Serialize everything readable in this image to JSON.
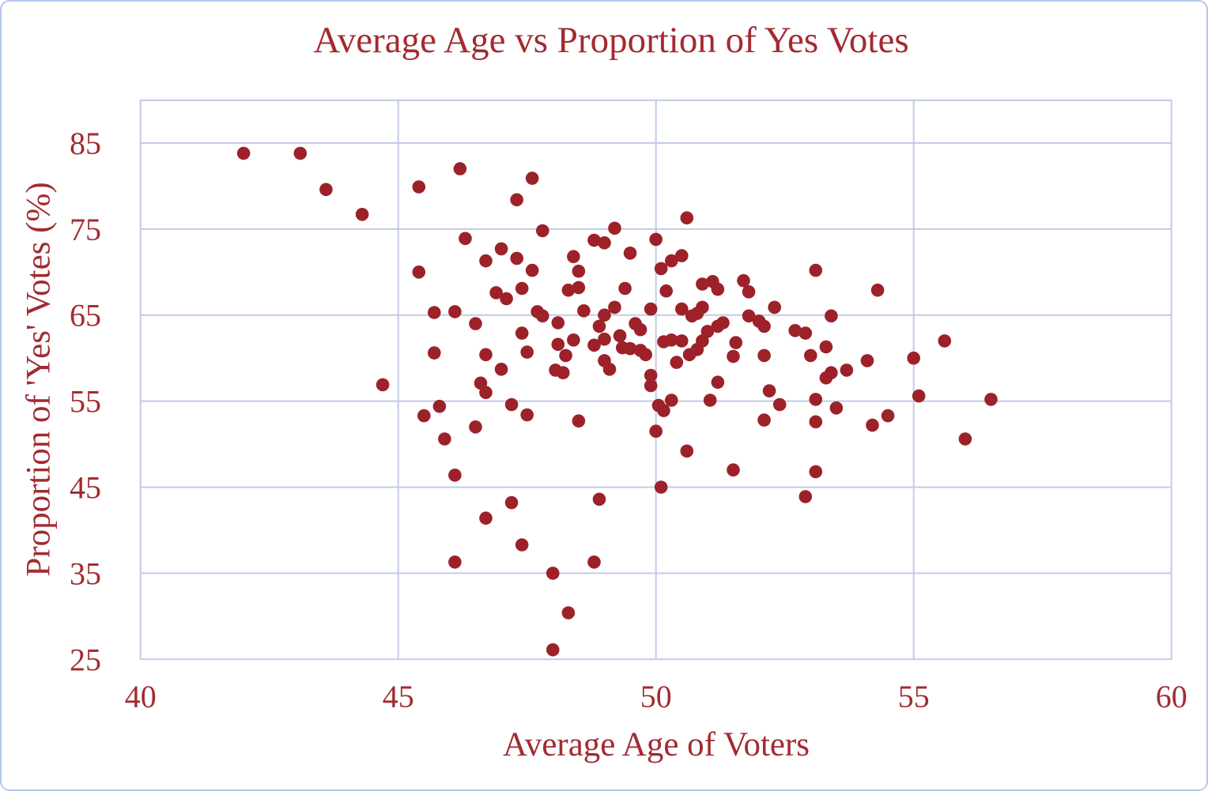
{
  "page": {
    "background": "#ffffff",
    "frame_border_color": "#b7c6ea"
  },
  "chart_data": {
    "type": "scatter",
    "title": "Average Age vs Proportion of Yes Votes",
    "xlabel": "Average Age of Voters",
    "ylabel": "Proportion of 'Yes' Votes (%)",
    "xlim": [
      40,
      60
    ],
    "ylim": [
      25,
      85
    ],
    "x_ticks": [
      40,
      45,
      50,
      55,
      60
    ],
    "y_ticks": [
      25,
      35,
      45,
      55,
      65,
      75,
      85
    ],
    "grid": true,
    "legend_position": "none",
    "colors": {
      "point": "#9d2129",
      "text": "#a22b31",
      "grid": "#c3cbe6"
    },
    "points": [
      [
        42.0,
        83.8
      ],
      [
        43.1,
        83.8
      ],
      [
        43.6,
        79.6
      ],
      [
        44.3,
        76.7
      ],
      [
        45.4,
        79.9
      ],
      [
        46.2,
        82.0
      ],
      [
        46.3,
        73.9
      ],
      [
        46.7,
        71.3
      ],
      [
        45.4,
        70.0
      ],
      [
        45.7,
        65.3
      ],
      [
        46.1,
        65.4
      ],
      [
        46.5,
        64.0
      ],
      [
        45.7,
        60.6
      ],
      [
        46.7,
        60.4
      ],
      [
        44.7,
        56.9
      ],
      [
        47.6,
        80.9
      ],
      [
        47.3,
        78.4
      ],
      [
        47.8,
        74.8
      ],
      [
        49.2,
        75.1
      ],
      [
        48.8,
        73.7
      ],
      [
        49.0,
        73.4
      ],
      [
        50.6,
        76.3
      ],
      [
        50.0,
        73.8
      ],
      [
        49.5,
        72.2
      ],
      [
        50.5,
        71.9
      ],
      [
        50.3,
        71.3
      ],
      [
        47.0,
        72.7
      ],
      [
        47.3,
        71.6
      ],
      [
        47.6,
        70.2
      ],
      [
        48.4,
        71.8
      ],
      [
        48.5,
        70.1
      ],
      [
        50.1,
        70.4
      ],
      [
        47.4,
        68.1
      ],
      [
        46.9,
        67.6
      ],
      [
        47.1,
        66.9
      ],
      [
        48.3,
        67.9
      ],
      [
        48.5,
        68.2
      ],
      [
        49.4,
        68.1
      ],
      [
        50.2,
        67.8
      ],
      [
        50.9,
        68.6
      ],
      [
        51.1,
        68.9
      ],
      [
        51.2,
        68.0
      ],
      [
        51.7,
        69.0
      ],
      [
        51.8,
        67.7
      ],
      [
        53.1,
        70.2
      ],
      [
        52.3,
        65.9
      ],
      [
        49.9,
        65.7
      ],
      [
        50.5,
        65.7
      ],
      [
        50.9,
        65.9
      ],
      [
        47.7,
        65.4
      ],
      [
        47.8,
        64.9
      ],
      [
        48.1,
        64.1
      ],
      [
        48.6,
        65.5
      ],
      [
        49.0,
        65.0
      ],
      [
        49.2,
        65.9
      ],
      [
        48.9,
        63.7
      ],
      [
        47.4,
        62.9
      ],
      [
        49.6,
        64.0
      ],
      [
        49.7,
        63.3
      ],
      [
        51.0,
        63.1
      ],
      [
        51.2,
        63.7
      ],
      [
        51.3,
        64.1
      ],
      [
        50.7,
        64.9
      ],
      [
        50.8,
        65.2
      ],
      [
        51.8,
        64.9
      ],
      [
        52.0,
        64.3
      ],
      [
        52.1,
        63.7
      ],
      [
        52.7,
        63.2
      ],
      [
        52.9,
        62.9
      ],
      [
        53.3,
        61.3
      ],
      [
        53.4,
        64.9
      ],
      [
        47.5,
        60.7
      ],
      [
        48.1,
        61.6
      ],
      [
        48.25,
        60.3
      ],
      [
        48.4,
        62.1
      ],
      [
        48.8,
        61.5
      ],
      [
        49.0,
        62.2
      ],
      [
        49.3,
        62.6
      ],
      [
        49.35,
        61.2
      ],
      [
        49.5,
        61.1
      ],
      [
        49.7,
        60.9
      ],
      [
        49.8,
        60.4
      ],
      [
        50.15,
        61.9
      ],
      [
        50.3,
        62.1
      ],
      [
        50.5,
        62.0
      ],
      [
        50.65,
        60.4
      ],
      [
        50.8,
        61.0
      ],
      [
        50.9,
        62.0
      ],
      [
        51.55,
        61.8
      ],
      [
        51.5,
        60.2
      ],
      [
        52.1,
        60.3
      ],
      [
        53.0,
        60.3
      ],
      [
        50.4,
        59.5
      ],
      [
        47.0,
        58.7
      ],
      [
        48.05,
        58.6
      ],
      [
        48.2,
        58.3
      ],
      [
        49.0,
        59.7
      ],
      [
        49.1,
        58.7
      ],
      [
        49.9,
        58.0
      ],
      [
        49.9,
        56.8
      ],
      [
        51.2,
        57.2
      ],
      [
        46.6,
        57.1
      ],
      [
        46.7,
        56.0
      ],
      [
        47.2,
        54.6
      ],
      [
        47.5,
        53.4
      ],
      [
        48.5,
        52.7
      ],
      [
        50.05,
        54.5
      ],
      [
        50.15,
        53.9
      ],
      [
        50.3,
        55.1
      ],
      [
        51.05,
        55.1
      ],
      [
        50.0,
        51.5
      ],
      [
        50.6,
        49.2
      ],
      [
        51.5,
        47.0
      ],
      [
        52.2,
        56.2
      ],
      [
        52.4,
        54.6
      ],
      [
        52.1,
        52.8
      ],
      [
        53.1,
        55.2
      ],
      [
        53.1,
        52.6
      ],
      [
        53.1,
        46.8
      ],
      [
        52.9,
        43.9
      ],
      [
        50.1,
        45.0
      ],
      [
        48.9,
        43.6
      ],
      [
        47.2,
        43.2
      ],
      [
        46.7,
        41.4
      ],
      [
        47.4,
        38.3
      ],
      [
        48.8,
        36.3
      ],
      [
        48.0,
        35.0
      ],
      [
        48.3,
        30.4
      ],
      [
        48.0,
        26.1
      ],
      [
        46.1,
        36.3
      ],
      [
        45.8,
        54.4
      ],
      [
        45.5,
        53.3
      ],
      [
        45.9,
        50.6
      ],
      [
        46.5,
        52.0
      ],
      [
        46.1,
        46.4
      ],
      [
        54.3,
        67.9
      ],
      [
        55.6,
        62.0
      ],
      [
        55.0,
        60.0
      ],
      [
        54.1,
        59.7
      ],
      [
        53.7,
        58.6
      ],
      [
        53.4,
        58.3
      ],
      [
        53.3,
        57.7
      ],
      [
        55.1,
        55.6
      ],
      [
        56.5,
        55.2
      ],
      [
        53.5,
        54.2
      ],
      [
        54.5,
        53.3
      ],
      [
        54.2,
        52.2
      ],
      [
        56.0,
        50.6
      ]
    ]
  }
}
